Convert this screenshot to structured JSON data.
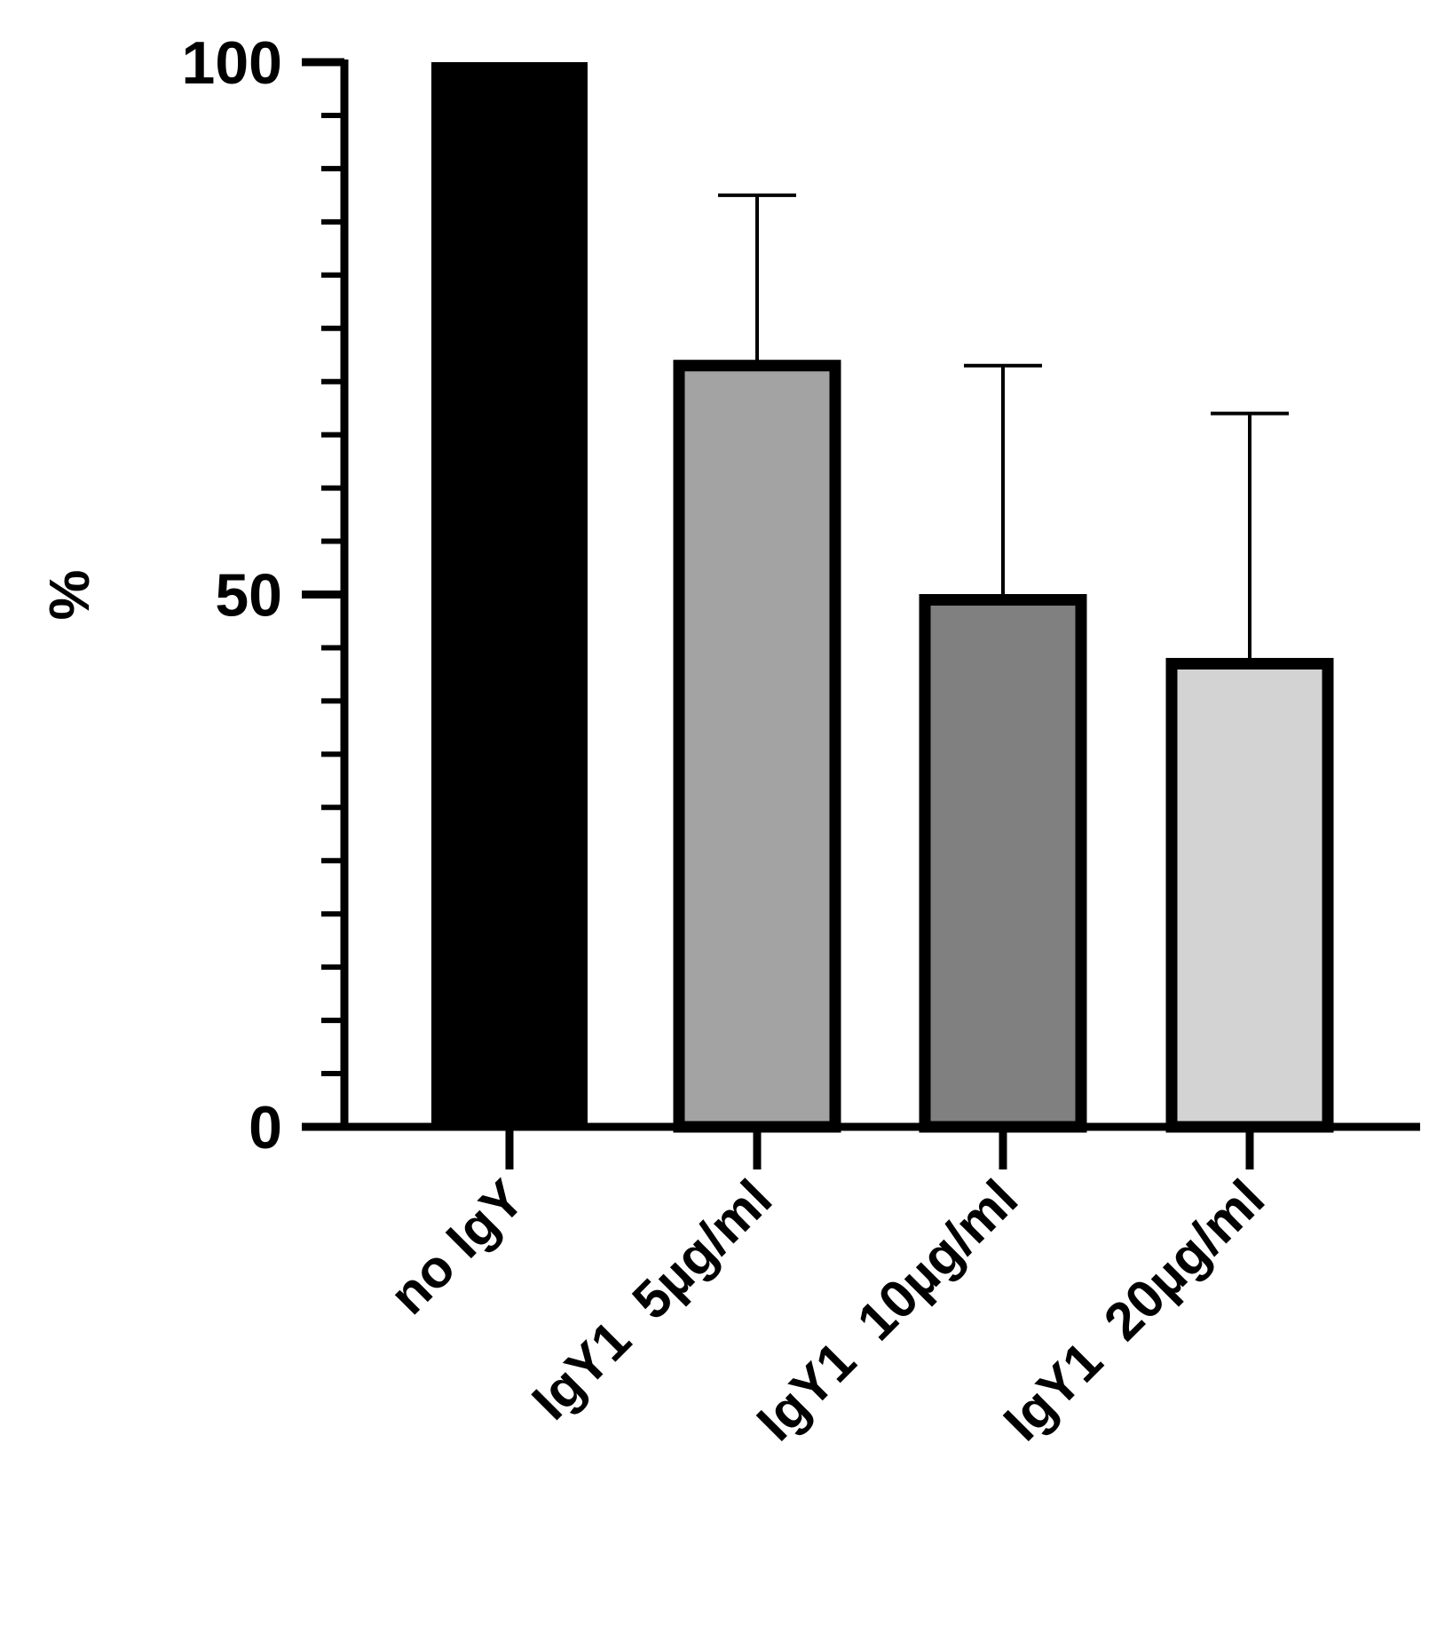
{
  "chart_data": {
    "type": "bar",
    "title": "",
    "xlabel": "",
    "ylabel": "%",
    "ylim": [
      0,
      100
    ],
    "yticks": [
      0,
      50,
      100
    ],
    "grid": false,
    "legend": "none",
    "categories": [
      "no IgY",
      "IgY1  5µg/ml",
      "IgY1  10µg/ml",
      "IgY1  20µg/ml"
    ],
    "values": [
      100,
      71.5,
      49.5,
      43.5
    ],
    "error_upper": [
      null,
      87.5,
      71.5,
      67
    ],
    "colors": [
      "#000000",
      "#a3a3a3",
      "#808080",
      "#d3d3d3"
    ]
  }
}
